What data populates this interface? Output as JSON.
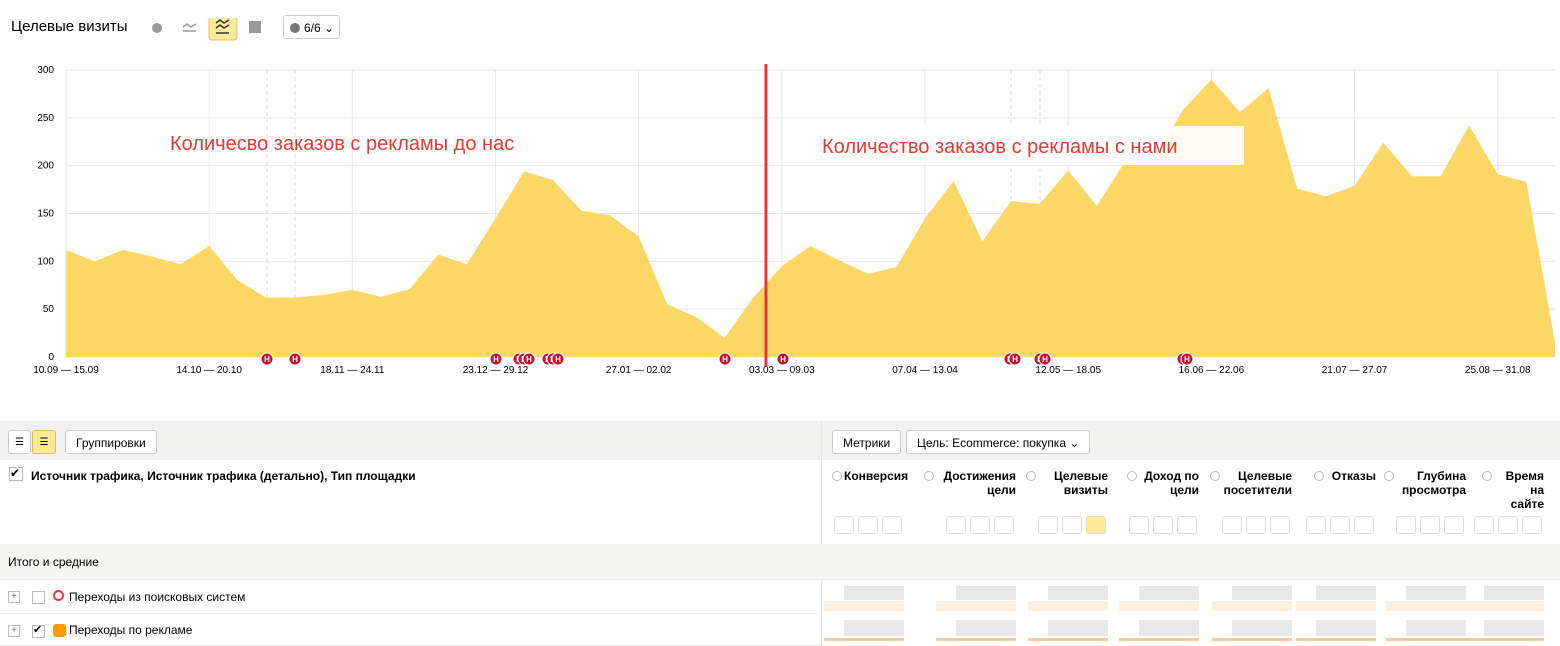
{
  "header": {
    "title": "Целевые визиты",
    "notes_button": "6/6"
  },
  "note_label": "Н",
  "chart_data": {
    "type": "area",
    "color": "#fdd766",
    "categories": [
      "10.09 — 15.09",
      null,
      null,
      null,
      null,
      "14.10 — 20.10",
      null,
      null,
      null,
      null,
      "18.11 — 24.11",
      null,
      null,
      null,
      null,
      "23.12 — 29.12",
      null,
      null,
      null,
      null,
      "27.01 — 02.02",
      null,
      null,
      null,
      null,
      "03.03 — 09.03",
      null,
      null,
      null,
      null,
      "07.04 — 13.04",
      null,
      null,
      null,
      null,
      "12.05 — 18.05",
      null,
      null,
      null,
      null,
      "16.06 — 22.06",
      null,
      null,
      null,
      null,
      "21.07 — 27.07",
      null,
      null,
      null,
      null,
      "25.08 — 31.08",
      null,
      null
    ],
    "values": [
      112,
      100,
      112,
      105,
      97,
      116,
      80,
      62,
      62,
      65,
      70,
      63,
      71,
      107,
      97,
      145,
      194,
      185,
      153,
      148,
      126,
      55,
      42,
      20,
      62,
      95,
      116,
      101,
      87,
      94,
      145,
      184,
      121,
      163,
      160,
      195,
      158,
      205,
      207,
      258,
      290,
      256,
      281,
      176,
      168,
      179,
      224,
      189,
      189,
      242,
      191,
      183,
      15
    ],
    "ylim": [
      0,
      300
    ],
    "yticks": [
      0,
      50,
      100,
      150,
      200,
      250,
      300
    ],
    "grid": true,
    "annotations": [
      "Количесво заказов с рекламы до нас",
      "Количество заказов с рекламы с нами"
    ]
  },
  "toolbar": {
    "groupings": "Группировки",
    "metrics": "Метрики",
    "goal": "Цель: Ecommerce: покупка"
  },
  "table": {
    "dimension_header": "Источник трафика, Источник трафика (детально), Тип площадки",
    "columns": [
      "Конверсия",
      "Достижения цели",
      "Целевые визиты",
      "Доход по цели",
      "Целевые посетители",
      "Отказы",
      "Глубина просмотра",
      "Время на сайте"
    ],
    "rows": [
      "Итого и средние",
      "Переходы из поисковых систем",
      "Переходы по рекламе"
    ]
  }
}
